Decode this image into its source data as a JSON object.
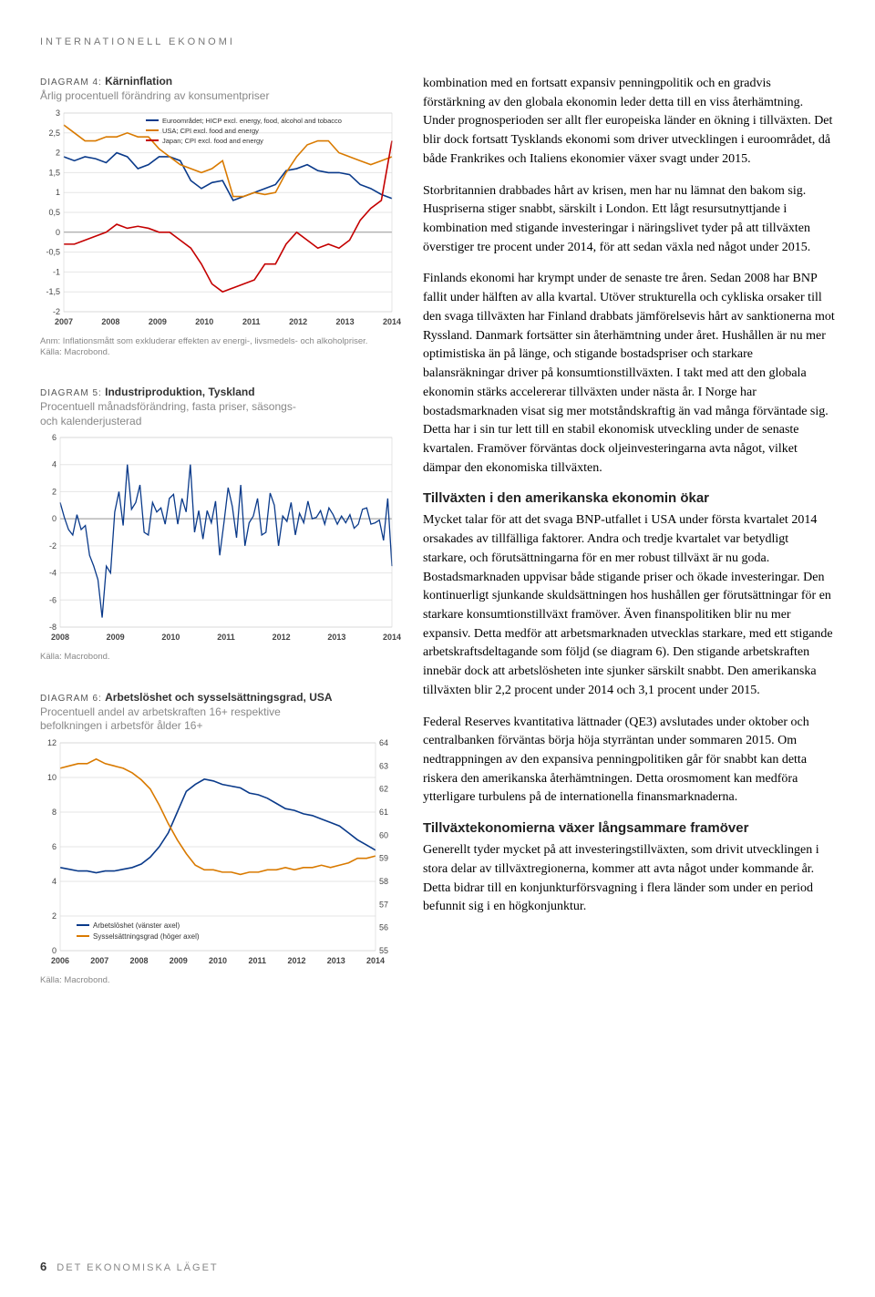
{
  "section_header": "INTERNATIONELL EKONOMI",
  "diagram4": {
    "num": "DIAGRAM 4:",
    "title": "Kärninflation",
    "subtitle": "Årlig procentuell förändring av konsumentpriser",
    "note": "Anm: Inflationsmått som exkluderar effekten av energi-, livsmedels- och alkoholpriser.\nKälla: Macrobond.",
    "x_labels": [
      "2007",
      "2008",
      "2009",
      "2010",
      "2011",
      "2012",
      "2013",
      "2014"
    ],
    "y_ticks": [
      -2,
      -1.5,
      -1,
      -0.5,
      0,
      0.5,
      1,
      1.5,
      2,
      2.5,
      3
    ],
    "ylim": [
      -2,
      3
    ],
    "background": "#ffffff",
    "grid_color": "#e6e6e6",
    "axis_color": "#888888",
    "legend": [
      {
        "label": "Euroområdet; HICP excl. energy, food, alcohol and tobacco",
        "color": "#0a3a8a"
      },
      {
        "label": "USA; CPI excl. food and energy",
        "color": "#d97a00"
      },
      {
        "label": "Japan; CPI excl. food and energy",
        "color": "#c40000"
      }
    ],
    "series": {
      "euro": {
        "color": "#0a3a8a",
        "values": [
          1.9,
          1.8,
          1.9,
          1.85,
          1.75,
          2.0,
          1.9,
          1.6,
          1.7,
          1.9,
          1.9,
          1.8,
          1.3,
          1.1,
          1.25,
          1.3,
          0.8,
          0.9,
          1.0,
          1.1,
          1.2,
          1.55,
          1.6,
          1.7,
          1.55,
          1.5,
          1.5,
          1.45,
          1.2,
          1.1,
          0.95,
          0.85
        ]
      },
      "usa": {
        "color": "#d97a00",
        "values": [
          2.7,
          2.5,
          2.3,
          2.3,
          2.4,
          2.4,
          2.5,
          2.4,
          2.4,
          2.1,
          1.9,
          1.7,
          1.6,
          1.5,
          1.6,
          1.8,
          0.9,
          0.9,
          1.0,
          0.95,
          1.0,
          1.5,
          1.9,
          2.2,
          2.3,
          2.3,
          2.0,
          1.9,
          1.8,
          1.7,
          1.8,
          1.9
        ]
      },
      "japan": {
        "color": "#c40000",
        "values": [
          -0.3,
          -0.3,
          -0.2,
          -0.1,
          0.0,
          0.2,
          0.1,
          0.15,
          0.1,
          0.0,
          0.0,
          -0.2,
          -0.4,
          -0.8,
          -1.3,
          -1.5,
          -1.4,
          -1.3,
          -1.2,
          -0.8,
          -0.8,
          -0.3,
          0.0,
          -0.2,
          -0.4,
          -0.3,
          -0.4,
          -0.2,
          0.3,
          0.6,
          0.8,
          2.3
        ]
      }
    }
  },
  "diagram5": {
    "num": "DIAGRAM 5:",
    "title": "Industriproduktion, Tyskland",
    "subtitle": "Procentuell månadsförändring, fasta priser, säsongs-\noch kalenderjusterad",
    "note": "Källa: Macrobond.",
    "x_labels": [
      "2008",
      "2009",
      "2010",
      "2011",
      "2012",
      "2013",
      "2014"
    ],
    "y_ticks": [
      -8,
      -6,
      -4,
      -2,
      0,
      2,
      4,
      6
    ],
    "ylim": [
      -8,
      6
    ],
    "color": "#0a3a8a",
    "background": "#ffffff",
    "grid_color": "#e6e6e6",
    "values": [
      1.2,
      0.1,
      -0.8,
      -1.2,
      0.3,
      -0.8,
      -0.5,
      -2.7,
      -3.5,
      -4.5,
      -7.3,
      -3.5,
      -4.0,
      0.5,
      2.0,
      -0.5,
      4.0,
      0.7,
      1.2,
      2.5,
      -1.0,
      -1.2,
      1.2,
      0.5,
      0.8,
      -0.4,
      1.5,
      1.8,
      -0.4,
      1.5,
      0.5,
      4.0,
      -1.0,
      0.6,
      -1.5,
      0.6,
      -0.3,
      1.3,
      -2.7,
      -0.3,
      2.3,
      0.9,
      -1.4,
      2.5,
      -2.0,
      -0.3,
      0.2,
      1.5,
      -1.2,
      -1.0,
      1.9,
      1.0,
      -2.0,
      0.2,
      -0.2,
      1.2,
      -1.2,
      0.4,
      -0.3,
      1.3,
      0.0,
      0.1,
      0.6,
      -0.4,
      0.8,
      0.3,
      -0.4,
      0.2,
      -0.3,
      0.3,
      -0.7,
      -0.4,
      0.7,
      0.8,
      -0.4,
      -0.3,
      -0.1,
      -1.6,
      1.5,
      -3.5
    ]
  },
  "diagram6": {
    "num": "DIAGRAM 6:",
    "title": "Arbetslöshet och sysselsättningsgrad, USA",
    "subtitle": "Procentuell andel av arbetskraften 16+ respektive\nbefolkningen i arbetsför ålder 16+",
    "note": "Källa: Macrobond.",
    "x_labels": [
      "2006",
      "2007",
      "2008",
      "2009",
      "2010",
      "2011",
      "2012",
      "2013",
      "2014"
    ],
    "y_left": [
      0,
      2,
      4,
      6,
      8,
      10,
      12
    ],
    "y_right": [
      55,
      56,
      57,
      58,
      59,
      60,
      61,
      62,
      63,
      64
    ],
    "ylim_left": [
      0,
      12
    ],
    "ylim_right": [
      55,
      64
    ],
    "background": "#ffffff",
    "grid_color": "#e6e6e6",
    "legend": [
      {
        "label": "Arbetslöshet (vänster axel)",
        "color": "#0a3a8a"
      },
      {
        "label": "Sysselsättningsgrad (höger axel)",
        "color": "#d97a00"
      }
    ],
    "unemp": {
      "color": "#0a3a8a",
      "values": [
        4.8,
        4.7,
        4.6,
        4.6,
        4.5,
        4.6,
        4.6,
        4.7,
        4.8,
        5.0,
        5.4,
        6.0,
        6.8,
        8.0,
        9.2,
        9.6,
        9.9,
        9.8,
        9.6,
        9.5,
        9.4,
        9.1,
        9.0,
        8.8,
        8.5,
        8.2,
        8.1,
        7.9,
        7.8,
        7.6,
        7.4,
        7.2,
        6.8,
        6.4,
        6.1,
        5.8
      ]
    },
    "emp": {
      "color": "#d97a00",
      "values": [
        62.9,
        63.0,
        63.1,
        63.1,
        63.3,
        63.1,
        63.0,
        62.9,
        62.7,
        62.4,
        62.0,
        61.3,
        60.5,
        59.8,
        59.2,
        58.7,
        58.5,
        58.5,
        58.4,
        58.4,
        58.3,
        58.4,
        58.4,
        58.5,
        58.5,
        58.6,
        58.5,
        58.6,
        58.6,
        58.7,
        58.6,
        58.7,
        58.8,
        59.0,
        59.0,
        59.1
      ]
    }
  },
  "body": {
    "p1": "kombination med en fortsatt expansiv penningpolitik och en gradvis förstärkning av den globala ekonomin leder detta till en viss återhämtning. Under prognosperioden ser allt fler europeiska länder en ökning i tillväxten. Det blir dock fortsatt Tysklands ekonomi som driver utvecklingen i euroområdet, då både Frankrikes och Italiens ekonomier växer svagt under 2015.",
    "p2": "Storbritannien drabbades hårt av krisen, men har nu lämnat den bakom sig. Huspriserna stiger snabbt, särskilt i London. Ett lågt resursutnyttjande i kombination med stigande investeringar i näringslivet tyder på att tillväxten överstiger tre procent under 2014, för att sedan växla ned något under 2015.",
    "p3": "Finlands ekonomi har krympt under de senaste tre åren. Sedan 2008 har BNP fallit under hälften av alla kvartal. Utöver strukturella och cykliska orsaker till den svaga tillväxten har Finland drabbats jämförelsevis hårt av sanktionerna mot Ryssland. Danmark fortsätter sin återhämtning under året. Hushållen är nu mer optimistiska än på länge, och stigande bostadspriser och starkare balansräkningar driver på konsumtionstillväxten. I takt med att den globala ekonomin stärks accelererar tillväxten under nästa år. I Norge har bostadsmarknaden visat sig mer motståndskraftig än vad många förväntade sig. Detta har i sin tur lett till en stabil ekonomisk utveckling under de senaste kvartalen. Framöver förväntas dock oljeinvesteringarna avta något, vilket dämpar den ekonomiska tillväxten.",
    "h1": "Tillväxten i den amerikanska ekonomin ökar",
    "p4": "Mycket talar för att det svaga BNP-utfallet i USA under första kvartalet 2014 orsakades av tillfälliga faktorer. Andra och tredje kvartalet var betydligt starkare, och förutsättningarna för en mer robust tillväxt är nu goda. Bostadsmarknaden uppvisar både stigande priser och ökade investeringar. Den kontinuerligt sjunkande skuldsättningen hos hushållen ger förutsättningar för en starkare konsumtionstillväxt framöver. Även finanspolitiken blir nu mer expansiv. Detta medför att arbetsmarknaden utvecklas starkare, med ett stigande arbetskraftsdeltagande som följd (se diagram 6). Den stigande arbetskraften innebär dock att arbetslösheten inte sjunker särskilt snabbt. Den amerikanska tillväxten blir 2,2 procent under 2014 och 3,1 procent under 2015.",
    "p5": "Federal Reserves kvantitativa lättnader (QE3) avslutades under oktober och centralbanken förväntas börja höja styrräntan under sommaren 2015. Om nedtrappningen av den expansiva penningpolitiken går för snabbt kan detta riskera den amerikanska återhämtningen. Detta orosmoment kan medföra ytterligare turbulens på de internationella finansmarknaderna.",
    "h2": "Tillväxtekonomierna växer långsammare framöver",
    "p6": "Generellt tyder mycket på att investeringstillväxten, som drivit utvecklingen i stora delar av tillväxtregionerna, kommer att avta något under kommande år. Detta bidrar till en konjunkturförsvagning i flera länder som under en period befunnit sig i en högkonjunktur."
  },
  "footer": {
    "page": "6",
    "title": "DET EKONOMISKA LÄGET"
  }
}
